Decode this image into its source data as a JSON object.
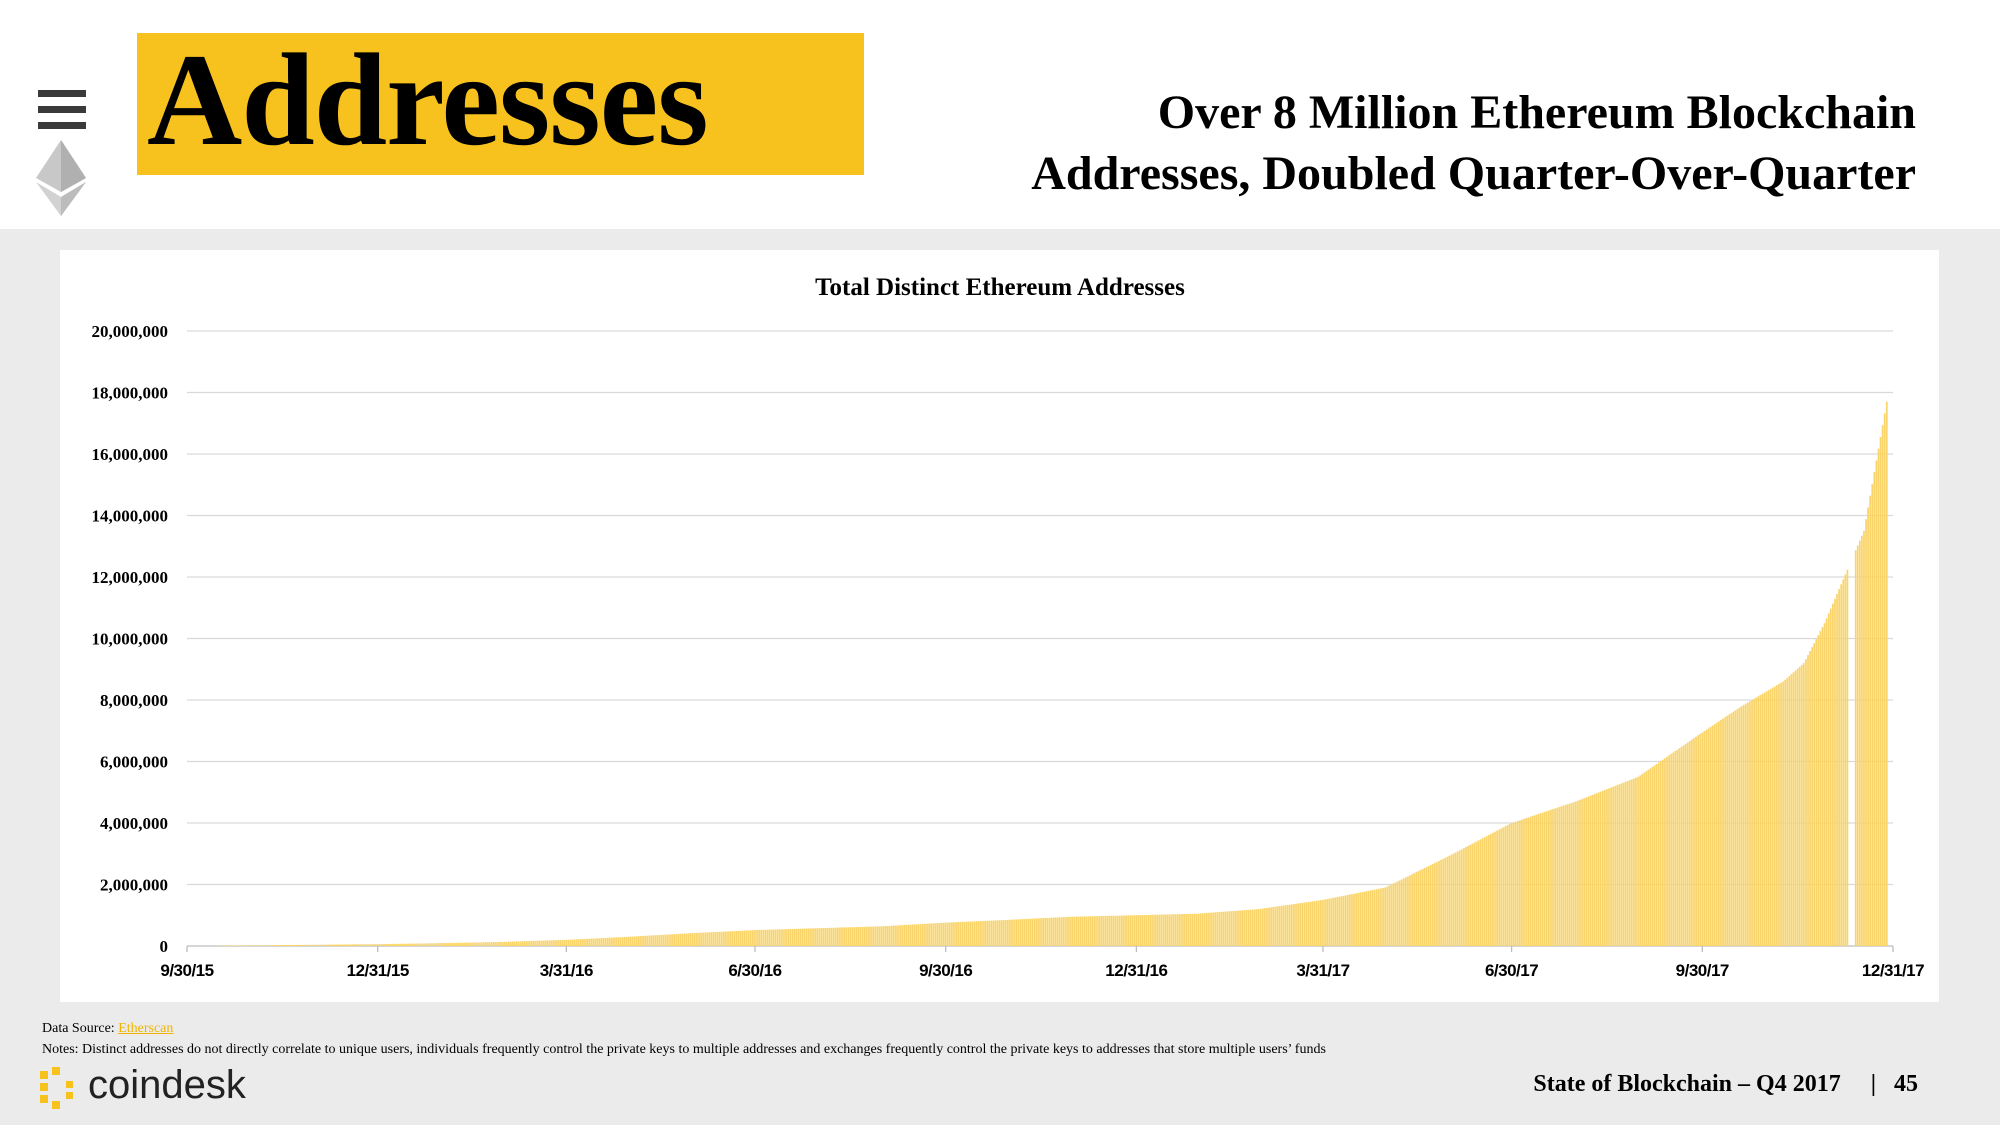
{
  "header": {
    "title": "Addresses",
    "subtitle_line1": "Over 8 Million Ethereum Blockchain",
    "subtitle_line2": "Addresses, Doubled Quarter-Over-Quarter",
    "accent_color": "#f8c21e"
  },
  "chart_data": {
    "type": "bar",
    "title": "Total Distinct Ethereum Addresses",
    "xlabel": "",
    "ylabel": "",
    "ylim": [
      0,
      20000000
    ],
    "y_ticks": [
      0,
      2000000,
      4000000,
      6000000,
      8000000,
      10000000,
      12000000,
      14000000,
      16000000,
      18000000,
      20000000
    ],
    "y_tick_labels": [
      "0",
      "2,000,000",
      "4,000,000",
      "6,000,000",
      "8,000,000",
      "10,000,000",
      "12,000,000",
      "14,000,000",
      "16,000,000",
      "18,000,000",
      "20,000,000"
    ],
    "x_tick_labels": [
      "9/30/15",
      "12/31/15",
      "3/31/16",
      "6/30/16",
      "9/30/16",
      "12/31/16",
      "3/31/17",
      "6/30/17",
      "9/30/17",
      "12/31/17"
    ],
    "series_color": "#f9d46a",
    "gridlines": true,
    "legend": "none",
    "series": [
      {
        "name": "Total Distinct Ethereum Addresses",
        "x_days": [
          0,
          30,
          60,
          92,
          120,
          150,
          183,
          213,
          244,
          275,
          305,
          335,
          366,
          396,
          426,
          457,
          487,
          517,
          548,
          578,
          608,
          639,
          670,
          700,
          730,
          750,
          770,
          780,
          790,
          809,
          820
        ],
        "values": [
          0,
          20000,
          40000,
          60000,
          90000,
          130000,
          200000,
          300000,
          420000,
          520000,
          580000,
          640000,
          760000,
          850000,
          950000,
          1000000,
          1050000,
          1200000,
          1500000,
          1900000,
          2900000,
          4000000,
          4700000,
          5500000,
          6900000,
          7800000,
          8600000,
          9200000,
          10500000,
          13500000,
          17700000
        ]
      }
    ],
    "gap_days": [
      802,
      803,
      804
    ],
    "label_days": [
      0,
      92,
      183,
      274,
      366,
      458,
      548,
      639,
      731,
      823
    ]
  },
  "notes": {
    "source_label": "Data Source: ",
    "source_link": "Etherscan",
    "notes_text": "Notes: Distinct addresses do not directly correlate to unique users, individuals frequently control the private keys to multiple addresses and exchanges frequently control the private keys to addresses that store multiple users’ funds"
  },
  "footer": {
    "brand": "coindesk",
    "report": "State of Blockchain – Q4 2017",
    "separator": "|",
    "page_number": "45"
  },
  "icons": {
    "menu": "menu-icon",
    "ethereum": "ethereum-logo-icon",
    "coindesk": "coindesk-logo-icon"
  }
}
